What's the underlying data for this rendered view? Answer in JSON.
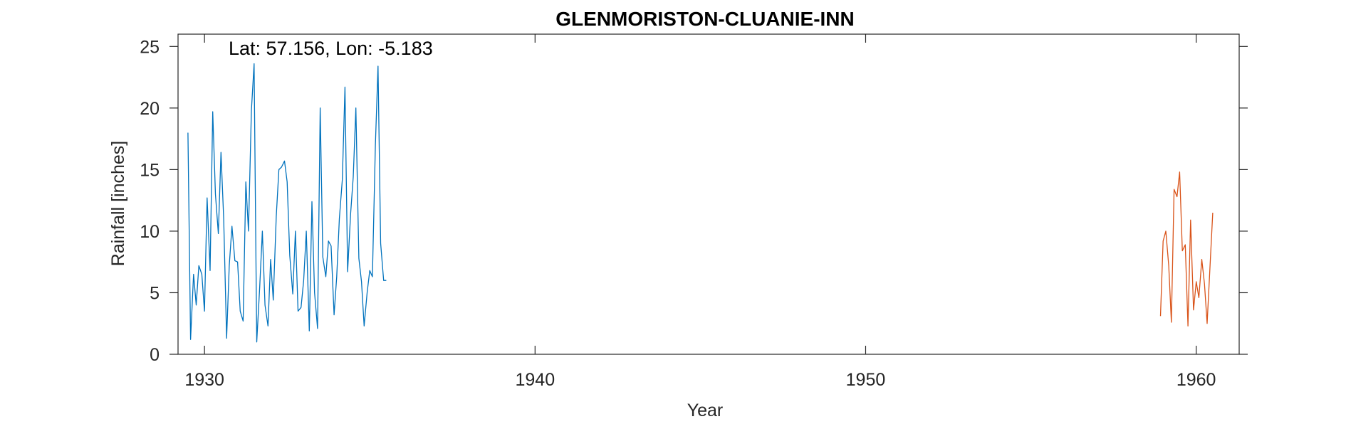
{
  "chart_data": {
    "type": "line",
    "title": "GLENMORISTON-CLUANIE-INN",
    "xlabel": "Year",
    "ylabel": "Rainfall [inches]",
    "annotation": "Lat: 57.156, Lon: -5.183",
    "xlim": [
      1929.2,
      1961.3
    ],
    "ylim": [
      0,
      26
    ],
    "x_ticks": [
      1930,
      1940,
      1950,
      1960
    ],
    "x_tick_labels": [
      "1930",
      "1940",
      "1950",
      "1960"
    ],
    "y_ticks": [
      0,
      5,
      10,
      15,
      20,
      25
    ],
    "y_tick_labels": [
      "0",
      "5",
      "10",
      "15",
      "20",
      "25"
    ],
    "grid": false,
    "legend": "none",
    "series": [
      {
        "color": "#0072BD",
        "x": [
          1929.5,
          1929.58,
          1929.67,
          1929.75,
          1929.83,
          1929.92,
          1930.0,
          1930.08,
          1930.17,
          1930.25,
          1930.33,
          1930.42,
          1930.5,
          1930.58,
          1930.67,
          1930.75,
          1930.83,
          1930.92,
          1931.0,
          1931.08,
          1931.17,
          1931.25,
          1931.33,
          1931.42,
          1931.5,
          1931.58,
          1931.67,
          1931.75,
          1931.83,
          1931.92,
          1932.0,
          1932.08,
          1932.17,
          1932.25,
          1932.33,
          1932.42,
          1932.5,
          1932.58,
          1932.67,
          1932.75,
          1932.83,
          1932.92,
          1933.0,
          1933.08,
          1933.17,
          1933.25,
          1933.33,
          1933.42,
          1933.5,
          1933.58,
          1933.67,
          1933.75,
          1933.83,
          1933.92,
          1934.0,
          1934.08,
          1934.17,
          1934.25,
          1934.33,
          1934.42,
          1934.5,
          1934.58,
          1934.67,
          1934.75,
          1934.83,
          1934.92,
          1935.0,
          1935.08,
          1935.17,
          1935.25,
          1935.33,
          1935.42,
          1935.5
        ],
        "values": [
          18.0,
          1.2,
          6.5,
          4.0,
          7.2,
          6.5,
          3.5,
          12.7,
          6.8,
          19.7,
          13.0,
          9.8,
          16.4,
          11.0,
          1.3,
          7.2,
          10.4,
          7.6,
          7.5,
          3.5,
          2.7,
          14.0,
          10.0,
          19.8,
          23.6,
          1.0,
          5.5,
          10.0,
          4.0,
          2.3,
          7.7,
          4.4,
          11.2,
          15.0,
          15.2,
          15.7,
          14.0,
          8.0,
          4.9,
          10.0,
          3.5,
          3.8,
          6.0,
          10.0,
          1.9,
          12.4,
          5.0,
          2.1,
          20.0,
          7.9,
          6.3,
          9.2,
          8.8,
          3.2,
          6.3,
          11.0,
          14.2,
          21.7,
          6.7,
          11.4,
          14.4,
          20.0,
          7.8,
          5.9,
          2.3,
          5.0,
          6.8,
          6.3,
          17.0,
          23.4,
          9.0,
          6.0,
          6.0
        ]
      },
      {
        "color": "#D95319",
        "x": [
          1958.92,
          1959.0,
          1959.08,
          1959.17,
          1959.25,
          1959.33,
          1959.42,
          1959.5,
          1959.58,
          1959.67,
          1959.75,
          1959.83,
          1959.92,
          1960.0,
          1960.08,
          1960.17,
          1960.25,
          1960.33,
          1960.42,
          1960.5
        ],
        "values": [
          3.1,
          9.2,
          10.0,
          7.2,
          2.6,
          13.4,
          12.8,
          14.8,
          8.4,
          8.9,
          2.3,
          10.9,
          3.6,
          5.9,
          4.6,
          7.7,
          5.7,
          2.5,
          7.3,
          11.5
        ]
      }
    ]
  }
}
